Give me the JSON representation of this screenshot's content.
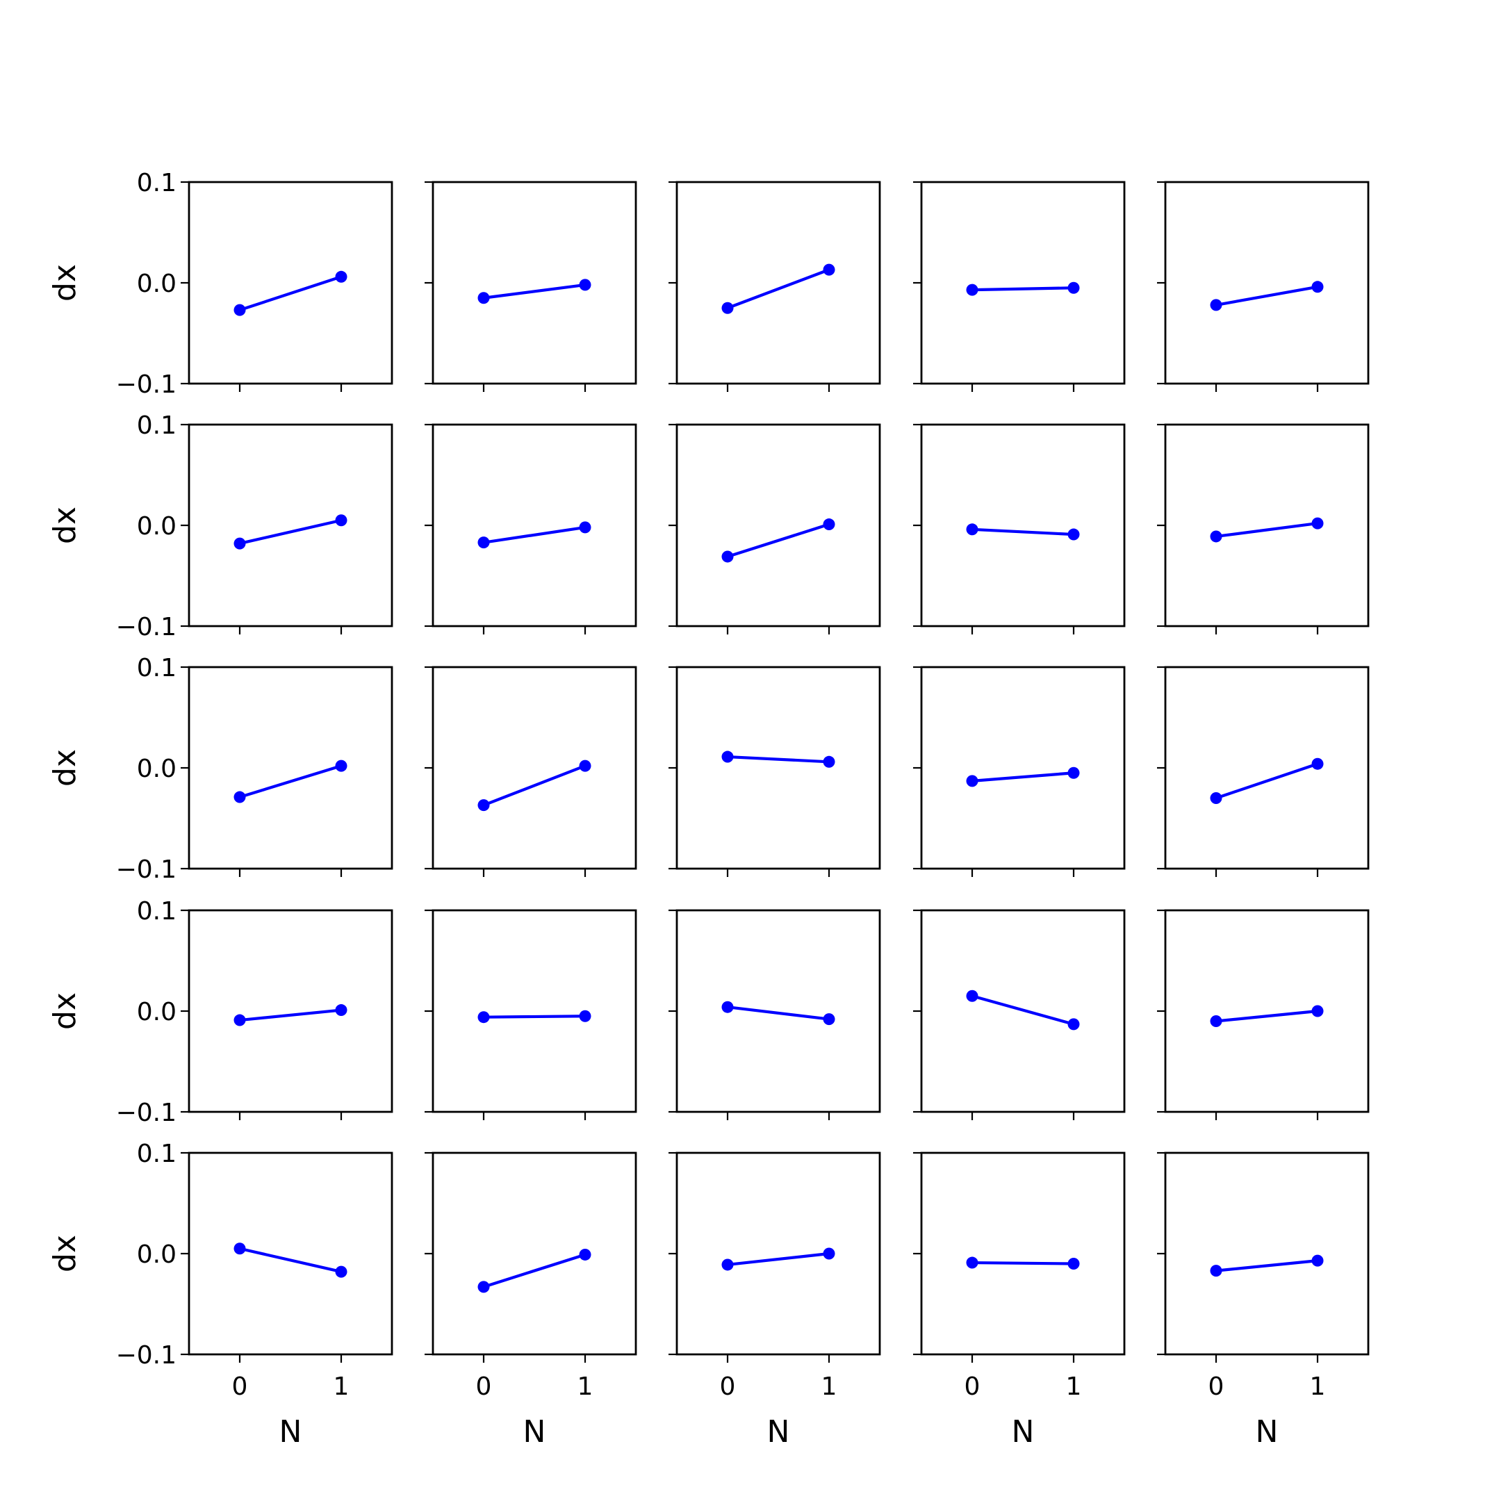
{
  "chart_data": {
    "type": "line",
    "layout": "5x5 grid of small multiples",
    "shared_x_ticks": [
      "0",
      "1"
    ],
    "shared_y_ticks": [
      "0.1",
      "0.0",
      "−0.1"
    ],
    "x_values": [
      0,
      1
    ],
    "xlim": [
      -0.5,
      1.5
    ],
    "ylim": [
      -0.1,
      0.1
    ],
    "xlabel": "N",
    "ylabel": "dx",
    "series_color": "#0000ff",
    "marker": "circle",
    "grid": false,
    "legend": "none",
    "panels": [
      [
        [
          -0.027,
          0.006
        ],
        [
          -0.015,
          -0.002
        ],
        [
          -0.025,
          0.013
        ],
        [
          -0.007,
          -0.005
        ],
        [
          -0.022,
          -0.004
        ]
      ],
      [
        [
          -0.018,
          0.005
        ],
        [
          -0.017,
          -0.002
        ],
        [
          -0.031,
          0.001
        ],
        [
          -0.004,
          -0.009
        ],
        [
          -0.011,
          0.002
        ]
      ],
      [
        [
          -0.029,
          0.002
        ],
        [
          -0.037,
          0.002
        ],
        [
          0.011,
          0.006
        ],
        [
          -0.013,
          -0.005
        ],
        [
          -0.03,
          0.004
        ]
      ],
      [
        [
          -0.009,
          0.001
        ],
        [
          -0.006,
          -0.005
        ],
        [
          0.004,
          -0.008
        ],
        [
          0.015,
          -0.013
        ],
        [
          -0.01,
          0.0
        ]
      ],
      [
        [
          0.005,
          -0.018
        ],
        [
          -0.033,
          -0.001
        ],
        [
          -0.011,
          0.0
        ],
        [
          -0.009,
          -0.01
        ],
        [
          -0.017,
          -0.007
        ]
      ]
    ]
  }
}
